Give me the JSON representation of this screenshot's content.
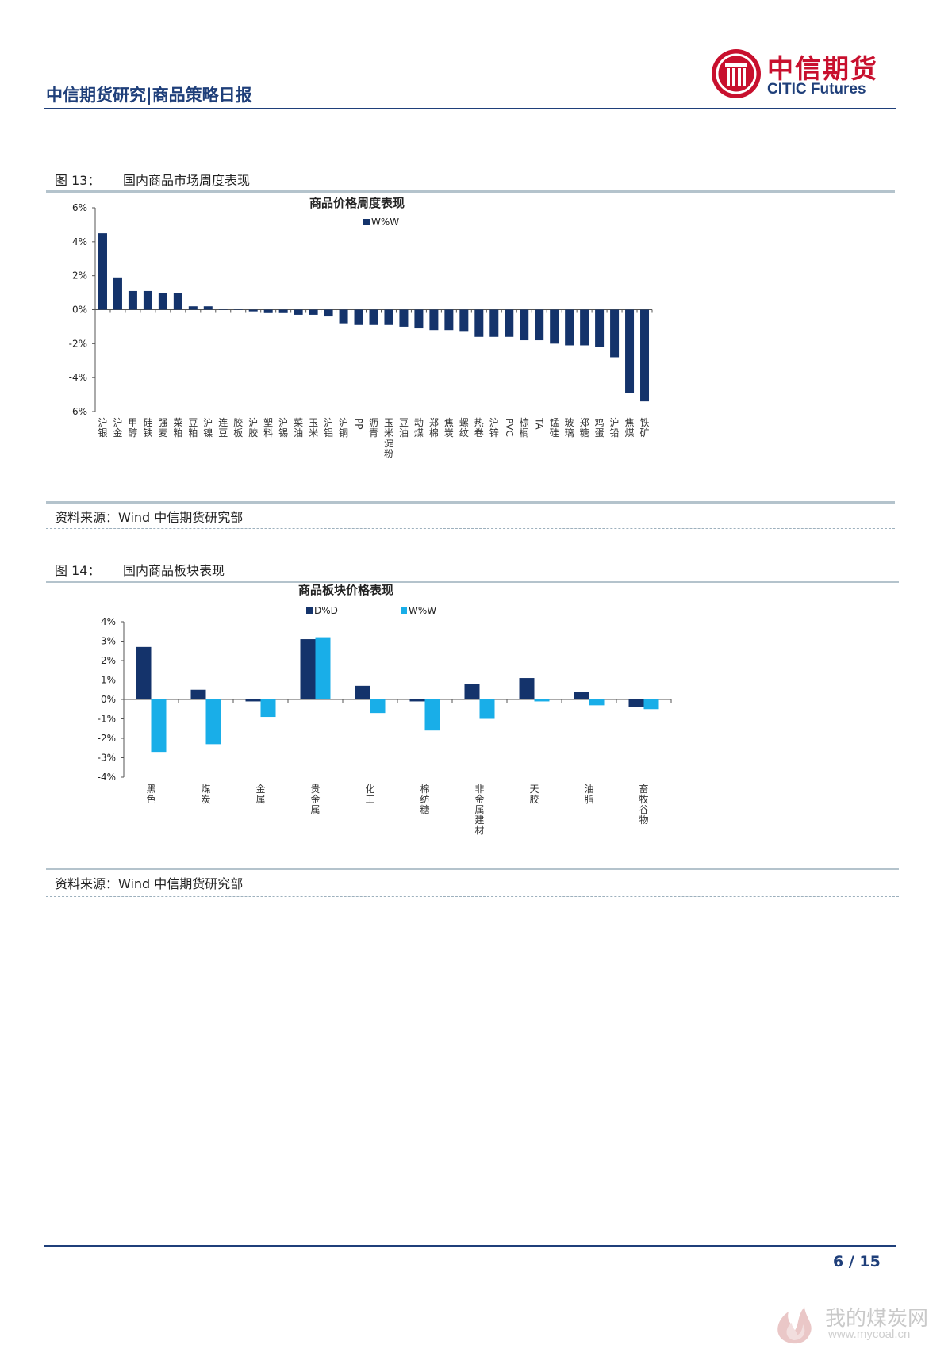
{
  "header": {
    "title": "中信期货研究|商品策略日报",
    "logo_cn": "中信期货",
    "logo_en": "CITIC Futures"
  },
  "colors": {
    "navy": "#1f3f7a",
    "accent_red": "#c8102e",
    "series_dark": "#14336b",
    "series_light": "#19aee8"
  },
  "figure13": {
    "label": "图 13：",
    "title": "国内商品市场周度表现",
    "source": "资料来源：Wind  中信期货研究部"
  },
  "figure14": {
    "label": "图 14：",
    "title": "国内商品板块表现",
    "source": "资料来源：Wind  中信期货研究部"
  },
  "chart_data": [
    {
      "type": "bar",
      "title": "商品价格周度表现",
      "legend": "top",
      "grid": false,
      "ylim": [
        -6,
        6
      ],
      "yticks": [
        "6%",
        "4%",
        "2%",
        "0%",
        "-2%",
        "-4%",
        "-6%"
      ],
      "categories": [
        "沪银",
        "沪金",
        "甲醇",
        "硅铁",
        "强麦",
        "菜粕",
        "豆粕",
        "沪镍",
        "连豆",
        "胶板",
        "沪胶",
        "塑料",
        "沪锡",
        "菜油",
        "玉米",
        "沪铝",
        "沪铜",
        "PP",
        "沥青",
        "玉米淀粉",
        "豆油",
        "动煤",
        "郑棉",
        "焦炭",
        "螺纹",
        "热卷",
        "沪锌",
        "PVC",
        "棕榈",
        "TA",
        "锰硅",
        "玻璃",
        "郑糖",
        "鸡蛋",
        "沪铅",
        "焦煤",
        "铁矿"
      ],
      "series": [
        {
          "name": "W%W",
          "color": "#14336b",
          "values": [
            4.5,
            1.9,
            1.1,
            1.1,
            1.0,
            1.0,
            0.2,
            0.2,
            0.0,
            0.0,
            -0.1,
            -0.2,
            -0.2,
            -0.3,
            -0.3,
            -0.4,
            -0.8,
            -0.9,
            -0.9,
            -0.9,
            -1.0,
            -1.1,
            -1.2,
            -1.2,
            -1.3,
            -1.6,
            -1.6,
            -1.6,
            -1.8,
            -1.8,
            -2.0,
            -2.1,
            -2.1,
            -2.2,
            -2.8,
            -4.9,
            -5.4
          ]
        }
      ]
    },
    {
      "type": "bar",
      "title": "商品板块价格表现",
      "legend": "top",
      "grid": false,
      "ylim": [
        -4,
        4
      ],
      "yticks": [
        "4%",
        "3%",
        "2%",
        "1%",
        "0%",
        "-1%",
        "-2%",
        "-3%",
        "-4%"
      ],
      "categories": [
        "黑色",
        "煤炭",
        "金属",
        "贵金属",
        "化工",
        "棉纺糖",
        "非金属建材",
        "天胶",
        "油脂",
        "畜牧谷物"
      ],
      "series": [
        {
          "name": "D%D",
          "color": "#14336b",
          "values": [
            2.7,
            0.5,
            -0.1,
            3.1,
            0.7,
            -0.1,
            0.8,
            1.1,
            0.4,
            -0.4
          ]
        },
        {
          "name": "W%W",
          "color": "#19aee8",
          "values": [
            -2.7,
            -2.3,
            -0.9,
            3.2,
            -0.7,
            -1.6,
            -1.0,
            -0.1,
            -0.3,
            -0.5
          ]
        }
      ]
    }
  ],
  "footer": {
    "page": "6 / 15"
  },
  "watermark": {
    "cn": "我的煤炭网",
    "url": "www.mycoal.cn"
  }
}
